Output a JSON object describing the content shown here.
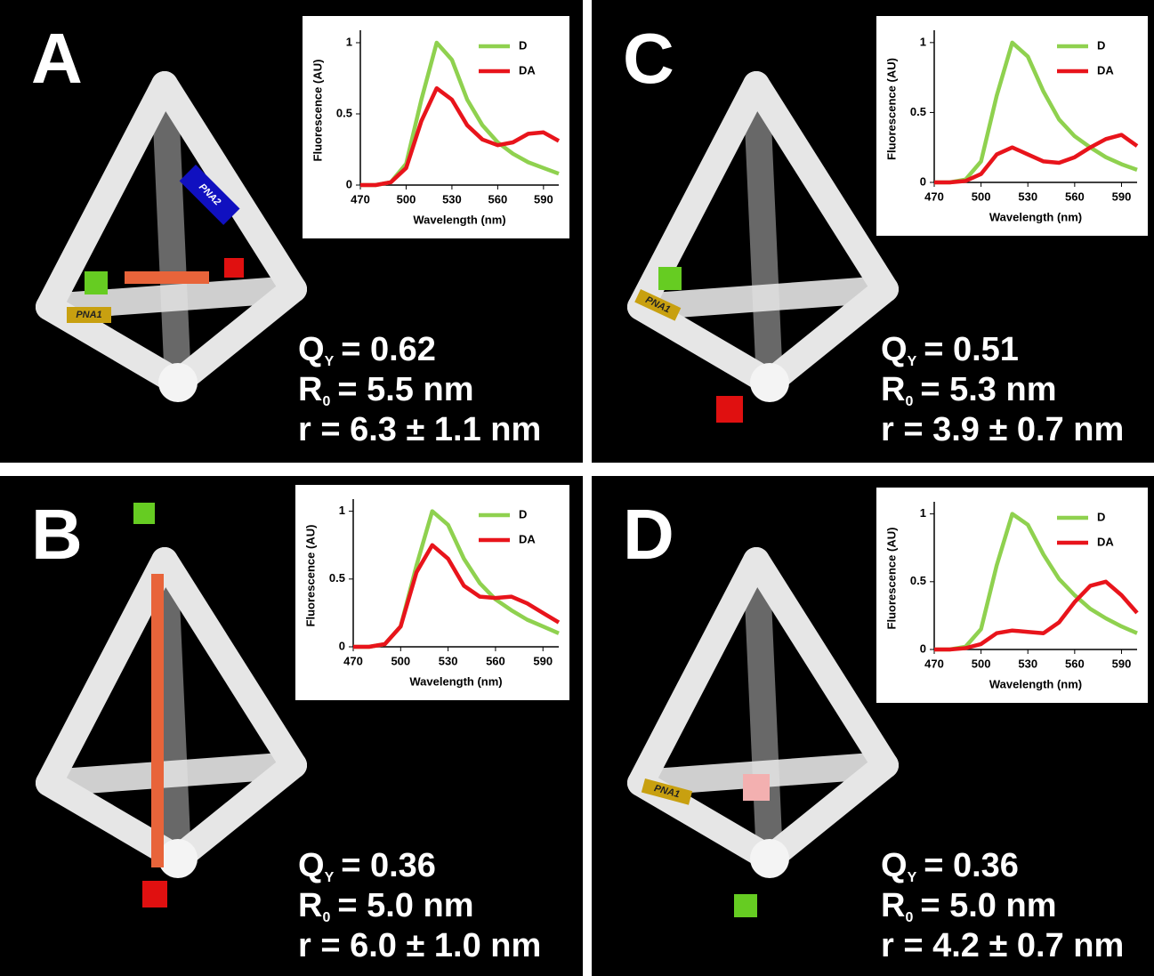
{
  "chart_data": [
    {
      "type": "line",
      "panel_label": "A",
      "annotations": {
        "qy": [
          "Q",
          "Y",
          "= 0.62"
        ],
        "r0": [
          "R",
          "0",
          "= 5.5 nm"
        ],
        "r": "r = 6.3 ± 1.1 nm"
      },
      "illustration_labels": [
        "PNA1",
        "PNA2"
      ],
      "x_label": "Wavelength (nm)",
      "y_label": "Fluorescence (AU)",
      "x": [
        470,
        480,
        490,
        500,
        510,
        520,
        530,
        540,
        550,
        560,
        570,
        580,
        590,
        600
      ],
      "series": [
        {
          "name": "D",
          "color": "#8fd14f",
          "values": [
            0,
            0,
            0.02,
            0.15,
            0.6,
            1.0,
            0.88,
            0.6,
            0.42,
            0.3,
            0.22,
            0.16,
            0.12,
            0.08
          ]
        },
        {
          "name": "DA",
          "color": "#e8141b",
          "values": [
            0,
            0,
            0.02,
            0.12,
            0.45,
            0.68,
            0.6,
            0.42,
            0.32,
            0.28,
            0.3,
            0.36,
            0.37,
            0.31
          ]
        }
      ],
      "xlim": [
        470,
        600
      ],
      "xticks": [
        470,
        500,
        530,
        560,
        590
      ],
      "ylim": [
        0,
        1.05
      ],
      "yticks": [
        0,
        0.5,
        1
      ],
      "legend": "upper right"
    },
    {
      "type": "line",
      "panel_label": "B",
      "annotations": {
        "qy": [
          "Q",
          "Y",
          "= 0.36"
        ],
        "r0": [
          "R",
          "0",
          "= 5.0 nm"
        ],
        "r": "r = 6.0 ± 1.0 nm"
      },
      "illustration_labels": [],
      "x_label": "Wavelength (nm)",
      "y_label": "Fluorescence (AU)",
      "x": [
        470,
        480,
        490,
        500,
        510,
        520,
        530,
        540,
        550,
        560,
        570,
        580,
        590,
        600
      ],
      "series": [
        {
          "name": "D",
          "color": "#8fd14f",
          "values": [
            0,
            0,
            0.02,
            0.15,
            0.6,
            1.0,
            0.9,
            0.65,
            0.47,
            0.35,
            0.27,
            0.2,
            0.15,
            0.1
          ]
        },
        {
          "name": "DA",
          "color": "#e8141b",
          "values": [
            0,
            0,
            0.02,
            0.15,
            0.55,
            0.75,
            0.65,
            0.45,
            0.37,
            0.36,
            0.37,
            0.32,
            0.25,
            0.18
          ]
        }
      ],
      "xlim": [
        470,
        600
      ],
      "xticks": [
        470,
        500,
        530,
        560,
        590
      ],
      "ylim": [
        0,
        1.05
      ],
      "yticks": [
        0,
        0.5,
        1
      ],
      "legend": "upper right"
    },
    {
      "type": "line",
      "panel_label": "C",
      "annotations": {
        "qy": [
          "Q",
          "Y",
          "= 0.51"
        ],
        "r0": [
          "R",
          "0",
          "= 5.3 nm"
        ],
        "r": "r = 3.9 ± 0.7 nm"
      },
      "illustration_labels": [
        "PNA1"
      ],
      "x_label": "Wavelength (nm)",
      "y_label": "Fluorescence (AU)",
      "x": [
        470,
        480,
        490,
        500,
        510,
        520,
        530,
        540,
        550,
        560,
        570,
        580,
        590,
        600
      ],
      "series": [
        {
          "name": "D",
          "color": "#8fd14f",
          "values": [
            0,
            0,
            0.02,
            0.15,
            0.62,
            1.0,
            0.9,
            0.65,
            0.45,
            0.33,
            0.25,
            0.18,
            0.13,
            0.09
          ]
        },
        {
          "name": "DA",
          "color": "#e8141b",
          "values": [
            0,
            0,
            0.01,
            0.06,
            0.2,
            0.25,
            0.2,
            0.15,
            0.14,
            0.18,
            0.25,
            0.31,
            0.34,
            0.26
          ]
        }
      ],
      "xlim": [
        470,
        600
      ],
      "xticks": [
        470,
        500,
        530,
        560,
        590
      ],
      "ylim": [
        0,
        1.05
      ],
      "yticks": [
        0,
        0.5,
        1
      ],
      "legend": "upper right"
    },
    {
      "type": "line",
      "panel_label": "D",
      "annotations": {
        "qy": [
          "Q",
          "Y",
          "= 0.36"
        ],
        "r0": [
          "R",
          "0",
          "= 5.0 nm"
        ],
        "r": "r = 4.2 ± 0.7 nm"
      },
      "illustration_labels": [
        "PNA1"
      ],
      "x_label": "Wavelength (nm)",
      "y_label": "Fluorescence (AU)",
      "x": [
        470,
        480,
        490,
        500,
        510,
        520,
        530,
        540,
        550,
        560,
        570,
        580,
        590,
        600
      ],
      "series": [
        {
          "name": "D",
          "color": "#8fd14f",
          "values": [
            0,
            0,
            0.02,
            0.15,
            0.62,
            1.0,
            0.92,
            0.7,
            0.52,
            0.4,
            0.3,
            0.23,
            0.17,
            0.12
          ]
        },
        {
          "name": "DA",
          "color": "#e8141b",
          "values": [
            0,
            0,
            0.01,
            0.04,
            0.12,
            0.14,
            0.13,
            0.12,
            0.2,
            0.35,
            0.47,
            0.5,
            0.4,
            0.27
          ]
        }
      ],
      "xlim": [
        470,
        600
      ],
      "xticks": [
        470,
        500,
        530,
        560,
        590
      ],
      "ylim": [
        0,
        1.05
      ],
      "yticks": [
        0,
        0.5,
        1
      ],
      "legend": "upper right"
    }
  ]
}
